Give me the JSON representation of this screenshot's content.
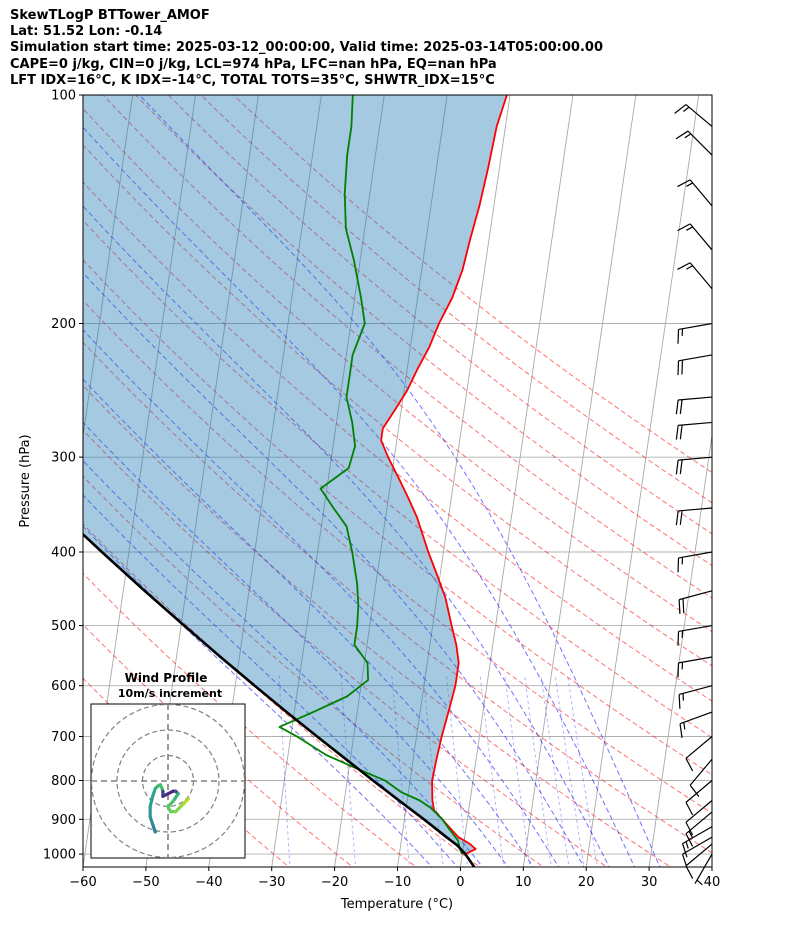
{
  "header": {
    "line1": "SkewTLogP BTTower_AMOF",
    "line2": "Lat: 51.52   Lon: -0.14",
    "line3": "Simulation start time: 2025-03-12_00:00:00, Valid time: 2025-03-14T05:00:00.00",
    "line4": "CAPE=0 j/kg, CIN=0 j/kg, LCL=974 hPa, LFC=nan hPa, EQ=nan hPa",
    "line5": "LFT IDX=16°C, K IDX=-14°C, TOTAL TOTS=35°C, SHWTR_IDX=15°C"
  },
  "chart_data": {
    "type": "line",
    "subtype": "skew-T log-P diagram",
    "xlabel": "Temperature (°C)",
    "ylabel": "Pressure (hPa)",
    "xlim": [
      -60,
      40
    ],
    "ylim": [
      1040,
      100
    ],
    "x_ticks": [
      -60,
      -50,
      -40,
      -30,
      -20,
      -10,
      0,
      10,
      20,
      30,
      40
    ],
    "x_tick_labels": [
      "−60",
      "−50",
      "−40",
      "−30",
      "−20",
      "−10",
      "0",
      "10",
      "20",
      "30",
      "40"
    ],
    "y_ticks": [
      1000,
      900,
      800,
      700,
      600,
      500,
      400,
      300,
      200,
      100
    ],
    "y_tick_labels": [
      "1000",
      "900",
      "800",
      "700",
      "600",
      "500",
      "400",
      "300",
      "200",
      "100"
    ],
    "grid": true,
    "series": [
      {
        "name": "Temperature",
        "color": "#ff0000",
        "points": [
          [
            1000,
            0.5
          ],
          [
            985,
            2
          ],
          [
            970,
            1
          ],
          [
            950,
            -1
          ],
          [
            925,
            -2.5
          ],
          [
            900,
            -4
          ],
          [
            875,
            -5.5
          ],
          [
            850,
            -6
          ],
          [
            800,
            -6.5
          ],
          [
            750,
            -6.3
          ],
          [
            700,
            -6
          ],
          [
            650,
            -5.5
          ],
          [
            600,
            -5
          ],
          [
            560,
            -5
          ],
          [
            530,
            -5.8
          ],
          [
            500,
            -7
          ],
          [
            460,
            -8.6
          ],
          [
            430,
            -10.4
          ],
          [
            400,
            -12.4
          ],
          [
            360,
            -15
          ],
          [
            340,
            -16.8
          ],
          [
            320,
            -18.8
          ],
          [
            300,
            -21
          ],
          [
            285,
            -22.5
          ],
          [
            275,
            -22.5
          ],
          [
            260,
            -21
          ],
          [
            245,
            -19.5
          ],
          [
            230,
            -18.4
          ],
          [
            215,
            -17
          ],
          [
            200,
            -16
          ],
          [
            185,
            -14.5
          ],
          [
            170,
            -13.5
          ],
          [
            155,
            -13
          ],
          [
            140,
            -12.3
          ],
          [
            125,
            -11.8
          ],
          [
            110,
            -11.4
          ],
          [
            100,
            -10.5
          ]
        ]
      },
      {
        "name": "Dewpoint",
        "color": "#008000",
        "points": [
          [
            1000,
            0
          ],
          [
            985,
            -0.5
          ],
          [
            960,
            -1
          ],
          [
            930,
            -2.5
          ],
          [
            900,
            -4
          ],
          [
            870,
            -6
          ],
          [
            850,
            -8
          ],
          [
            830,
            -11
          ],
          [
            800,
            -14
          ],
          [
            770,
            -19
          ],
          [
            740,
            -24
          ],
          [
            700,
            -29
          ],
          [
            680,
            -32
          ],
          [
            650,
            -27
          ],
          [
            620,
            -22
          ],
          [
            590,
            -19
          ],
          [
            560,
            -19.5
          ],
          [
            530,
            -22
          ],
          [
            500,
            -22
          ],
          [
            470,
            -22.3
          ],
          [
            440,
            -23
          ],
          [
            400,
            -24.5
          ],
          [
            370,
            -26
          ],
          [
            350,
            -28.5
          ],
          [
            330,
            -31
          ],
          [
            310,
            -27
          ],
          [
            290,
            -26.5
          ],
          [
            270,
            -27.5
          ],
          [
            250,
            -29
          ],
          [
            235,
            -29
          ],
          [
            220,
            -29
          ],
          [
            200,
            -27.8
          ],
          [
            185,
            -29
          ],
          [
            165,
            -31
          ],
          [
            150,
            -33
          ],
          [
            135,
            -34
          ],
          [
            120,
            -34.5
          ],
          [
            110,
            -34.5
          ],
          [
            100,
            -35
          ]
        ]
      },
      {
        "name": "Parcel",
        "color": "#000000",
        "points": [
          [
            1040,
            2.2
          ],
          [
            1000,
            0.5
          ],
          [
            974,
            -1
          ],
          [
            950,
            -2.9
          ],
          [
            900,
            -6.9
          ],
          [
            850,
            -11.3
          ],
          [
            800,
            -15.9
          ],
          [
            750,
            -20.7
          ],
          [
            700,
            -25.8
          ],
          [
            650,
            -31.2
          ],
          [
            600,
            -36.9
          ],
          [
            550,
            -43
          ],
          [
            500,
            -49.5
          ],
          [
            450,
            -56.6
          ],
          [
            400,
            -64.3
          ],
          [
            350,
            -72.8
          ],
          [
            300,
            -82
          ],
          [
            250,
            -92.5
          ],
          [
            200,
            -104
          ],
          [
            150,
            -118
          ],
          [
            100,
            -136
          ]
        ]
      }
    ],
    "dry_adiabats_theta_c": [
      -30,
      -20,
      -10,
      0,
      10,
      20,
      30,
      40,
      50,
      60,
      70,
      80,
      90,
      100,
      110,
      120,
      130,
      140,
      150
    ],
    "moist_adiabats_start_c": [
      -4,
      0,
      4,
      8,
      12,
      16,
      20,
      24,
      28,
      32
    ],
    "mixing_ratios_gkg": [
      0.4,
      1,
      2,
      3,
      4,
      6,
      8,
      10,
      12,
      14,
      16
    ],
    "wind_barbs": [
      {
        "p": 1000,
        "speed": 5,
        "dir": 210
      },
      {
        "p": 970,
        "speed": 10,
        "dir": 230
      },
      {
        "p": 950,
        "speed": 10,
        "dir": 240
      },
      {
        "p": 920,
        "speed": 15,
        "dir": 240
      },
      {
        "p": 880,
        "speed": 15,
        "dir": 230
      },
      {
        "p": 850,
        "speed": 10,
        "dir": 230
      },
      {
        "p": 800,
        "speed": 10,
        "dir": 230
      },
      {
        "p": 750,
        "speed": 10,
        "dir": 220
      },
      {
        "p": 700,
        "speed": 10,
        "dir": 230
      },
      {
        "p": 650,
        "speed": 15,
        "dir": 250
      },
      {
        "p": 600,
        "speed": 15,
        "dir": 255
      },
      {
        "p": 550,
        "speed": 15,
        "dir": 260
      },
      {
        "p": 500,
        "speed": 15,
        "dir": 260
      },
      {
        "p": 450,
        "speed": 20,
        "dir": 255
      },
      {
        "p": 400,
        "speed": 15,
        "dir": 260
      },
      {
        "p": 350,
        "speed": 20,
        "dir": 265
      },
      {
        "p": 300,
        "speed": 20,
        "dir": 265
      },
      {
        "p": 270,
        "speed": 20,
        "dir": 265
      },
      {
        "p": 250,
        "speed": 20,
        "dir": 265
      },
      {
        "p": 220,
        "speed": 20,
        "dir": 260
      },
      {
        "p": 200,
        "speed": 15,
        "dir": 260
      },
      {
        "p": 180,
        "speed": 15,
        "dir": 320
      },
      {
        "p": 160,
        "speed": 15,
        "dir": 320
      },
      {
        "p": 140,
        "speed": 15,
        "dir": 320
      },
      {
        "p": 120,
        "speed": 15,
        "dir": 315
      },
      {
        "p": 110,
        "speed": 15,
        "dir": 310
      }
    ],
    "inset": {
      "title": "Wind Profile",
      "subtitle": "10m/s increment",
      "rings_ms": [
        10,
        20,
        30
      ],
      "hodograph_uv": [
        [
          -5,
          -20
        ],
        [
          -6,
          -17
        ],
        [
          -7,
          -14
        ],
        [
          -7,
          -10
        ],
        [
          -6,
          -6
        ],
        [
          -5,
          -3
        ],
        [
          -4,
          -2
        ],
        [
          -3,
          -1.5
        ],
        [
          -2.5,
          -2.5
        ],
        [
          -2,
          -4
        ],
        [
          -2,
          -6
        ],
        [
          0,
          -5
        ],
        [
          2,
          -4
        ],
        [
          3,
          -4
        ],
        [
          4,
          -5
        ],
        [
          2,
          -8
        ],
        [
          0,
          -10
        ],
        [
          1,
          -12
        ],
        [
          3,
          -12
        ],
        [
          5,
          -10
        ],
        [
          6,
          -9
        ],
        [
          7,
          -8
        ],
        [
          8,
          -7
        ]
      ]
    }
  }
}
